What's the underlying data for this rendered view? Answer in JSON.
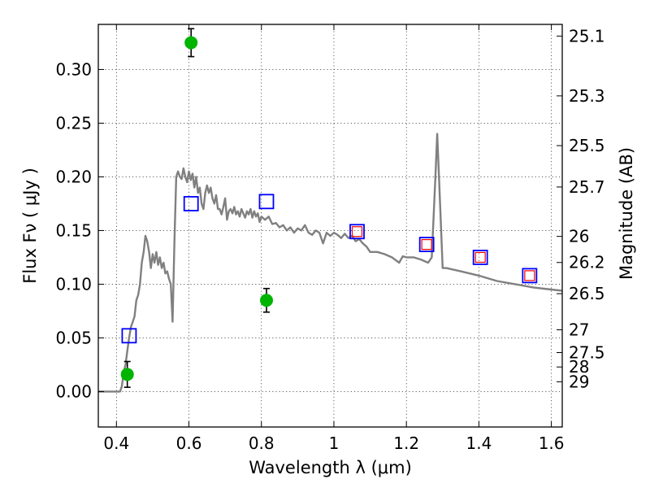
{
  "chart_data": {
    "type": "scatter",
    "title": "",
    "xlabel": "Wavelength  λ (μm)",
    "ylabel": "Flux  Fν  ( μJy )",
    "y2label": "Magnitude (AB)",
    "xlim": [
      0.35,
      1.63
    ],
    "ylim": [
      -0.033,
      0.342
    ],
    "grid": true,
    "x_ticks": [
      {
        "value": 0.4,
        "label": "0.4"
      },
      {
        "value": 0.6,
        "label": "0.6"
      },
      {
        "value": 0.8,
        "label": "0.8"
      },
      {
        "value": 1.0,
        "label": "1"
      },
      {
        "value": 1.2,
        "label": "1.2"
      },
      {
        "value": 1.4,
        "label": "1.4"
      },
      {
        "value": 1.6,
        "label": "1.6"
      }
    ],
    "y_ticks": [
      {
        "value": 0.0,
        "label": "0.00"
      },
      {
        "value": 0.05,
        "label": "0.05"
      },
      {
        "value": 0.1,
        "label": "0.10"
      },
      {
        "value": 0.15,
        "label": "0.15"
      },
      {
        "value": 0.2,
        "label": "0.20"
      },
      {
        "value": 0.25,
        "label": "0.25"
      },
      {
        "value": 0.3,
        "label": "0.30"
      }
    ],
    "mag_ticks": [
      {
        "value": 25.1,
        "label": "25.1"
      },
      {
        "value": 25.3,
        "label": "25.3"
      },
      {
        "value": 25.5,
        "label": "25.5"
      },
      {
        "value": 25.7,
        "label": "25.7"
      },
      {
        "value": 26.0,
        "label": "26"
      },
      {
        "value": 26.2,
        "label": "26.2"
      },
      {
        "value": 26.5,
        "label": "26.5"
      },
      {
        "value": 27.0,
        "label": "27"
      },
      {
        "value": 27.5,
        "label": "27.5"
      },
      {
        "value": 28.0,
        "label": "28"
      },
      {
        "value": 29.0,
        "label": "29"
      }
    ],
    "series": [
      {
        "kind": "line",
        "color": "#808080",
        "x": [
          0.35,
          0.41,
          0.415,
          0.42,
          0.425,
          0.43,
          0.435,
          0.44,
          0.445,
          0.45,
          0.455,
          0.46,
          0.465,
          0.47,
          0.475,
          0.48,
          0.485,
          0.49,
          0.495,
          0.5,
          0.505,
          0.51,
          0.515,
          0.52,
          0.525,
          0.53,
          0.535,
          0.54,
          0.545,
          0.55,
          0.555,
          0.56,
          0.565,
          0.57,
          0.575,
          0.58,
          0.585,
          0.59,
          0.595,
          0.6,
          0.605,
          0.61,
          0.615,
          0.62,
          0.625,
          0.63,
          0.635,
          0.64,
          0.645,
          0.65,
          0.655,
          0.66,
          0.665,
          0.67,
          0.675,
          0.68,
          0.685,
          0.69,
          0.695,
          0.7,
          0.705,
          0.71,
          0.715,
          0.72,
          0.725,
          0.73,
          0.735,
          0.74,
          0.745,
          0.75,
          0.755,
          0.76,
          0.765,
          0.77,
          0.775,
          0.78,
          0.785,
          0.79,
          0.795,
          0.8,
          0.81,
          0.82,
          0.83,
          0.84,
          0.85,
          0.86,
          0.87,
          0.88,
          0.89,
          0.9,
          0.91,
          0.92,
          0.93,
          0.94,
          0.95,
          0.96,
          0.97,
          0.98,
          0.99,
          1.0,
          1.01,
          1.02,
          1.03,
          1.04,
          1.05,
          1.06,
          1.07,
          1.08,
          1.09,
          1.1,
          1.12,
          1.14,
          1.16,
          1.18,
          1.19,
          1.2,
          1.22,
          1.24,
          1.26,
          1.27,
          1.28,
          1.285,
          1.29,
          1.3,
          1.31,
          1.35,
          1.4,
          1.45,
          1.5,
          1.55,
          1.6,
          1.63
        ],
        "y": [
          0.0,
          0.0,
          0.005,
          0.018,
          0.025,
          0.038,
          0.05,
          0.06,
          0.065,
          0.07,
          0.085,
          0.09,
          0.1,
          0.12,
          0.13,
          0.145,
          0.14,
          0.13,
          0.115,
          0.128,
          0.12,
          0.13,
          0.118,
          0.125,
          0.115,
          0.12,
          0.11,
          0.112,
          0.105,
          0.1,
          0.065,
          0.14,
          0.2,
          0.205,
          0.2,
          0.198,
          0.208,
          0.2,
          0.195,
          0.205,
          0.197,
          0.203,
          0.19,
          0.2,
          0.185,
          0.19,
          0.175,
          0.17,
          0.185,
          0.192,
          0.185,
          0.19,
          0.18,
          0.175,
          0.183,
          0.17,
          0.17,
          0.165,
          0.172,
          0.18,
          0.16,
          0.168,
          0.17,
          0.166,
          0.172,
          0.165,
          0.168,
          0.163,
          0.17,
          0.166,
          0.162,
          0.168,
          0.165,
          0.17,
          0.162,
          0.168,
          0.163,
          0.166,
          0.158,
          0.163,
          0.16,
          0.163,
          0.156,
          0.157,
          0.153,
          0.155,
          0.15,
          0.153,
          0.148,
          0.152,
          0.15,
          0.155,
          0.148,
          0.146,
          0.15,
          0.148,
          0.138,
          0.148,
          0.145,
          0.148,
          0.146,
          0.143,
          0.147,
          0.143,
          0.145,
          0.14,
          0.142,
          0.138,
          0.135,
          0.13,
          0.13,
          0.128,
          0.125,
          0.12,
          0.126,
          0.125,
          0.125,
          0.123,
          0.12,
          0.125,
          0.2,
          0.24,
          0.2,
          0.115,
          0.115,
          0.112,
          0.108,
          0.103,
          0.1,
          0.097,
          0.095,
          0.094
        ]
      },
      {
        "kind": "points",
        "marker": "circle",
        "color": "#00b400",
        "points": [
          {
            "x": 0.43,
            "y": 0.016,
            "err": 0.012
          },
          {
            "x": 0.606,
            "y": 0.325,
            "err": 0.013
          },
          {
            "x": 0.814,
            "y": 0.085,
            "err": 0.011
          }
        ]
      },
      {
        "kind": "points",
        "marker": "square",
        "color": "#0000ff",
        "points": [
          {
            "x": 0.435,
            "y": 0.052
          },
          {
            "x": 0.606,
            "y": 0.175
          },
          {
            "x": 0.814,
            "y": 0.177
          },
          {
            "x": 1.064,
            "y": 0.149
          },
          {
            "x": 1.256,
            "y": 0.137
          },
          {
            "x": 1.404,
            "y": 0.125
          },
          {
            "x": 1.54,
            "y": 0.108
          }
        ]
      },
      {
        "kind": "points",
        "marker": "square-small",
        "color": "#ff0000",
        "points": [
          {
            "x": 1.064,
            "y": 0.149
          },
          {
            "x": 1.256,
            "y": 0.137
          },
          {
            "x": 1.404,
            "y": 0.125
          },
          {
            "x": 1.54,
            "y": 0.108
          }
        ]
      }
    ]
  }
}
